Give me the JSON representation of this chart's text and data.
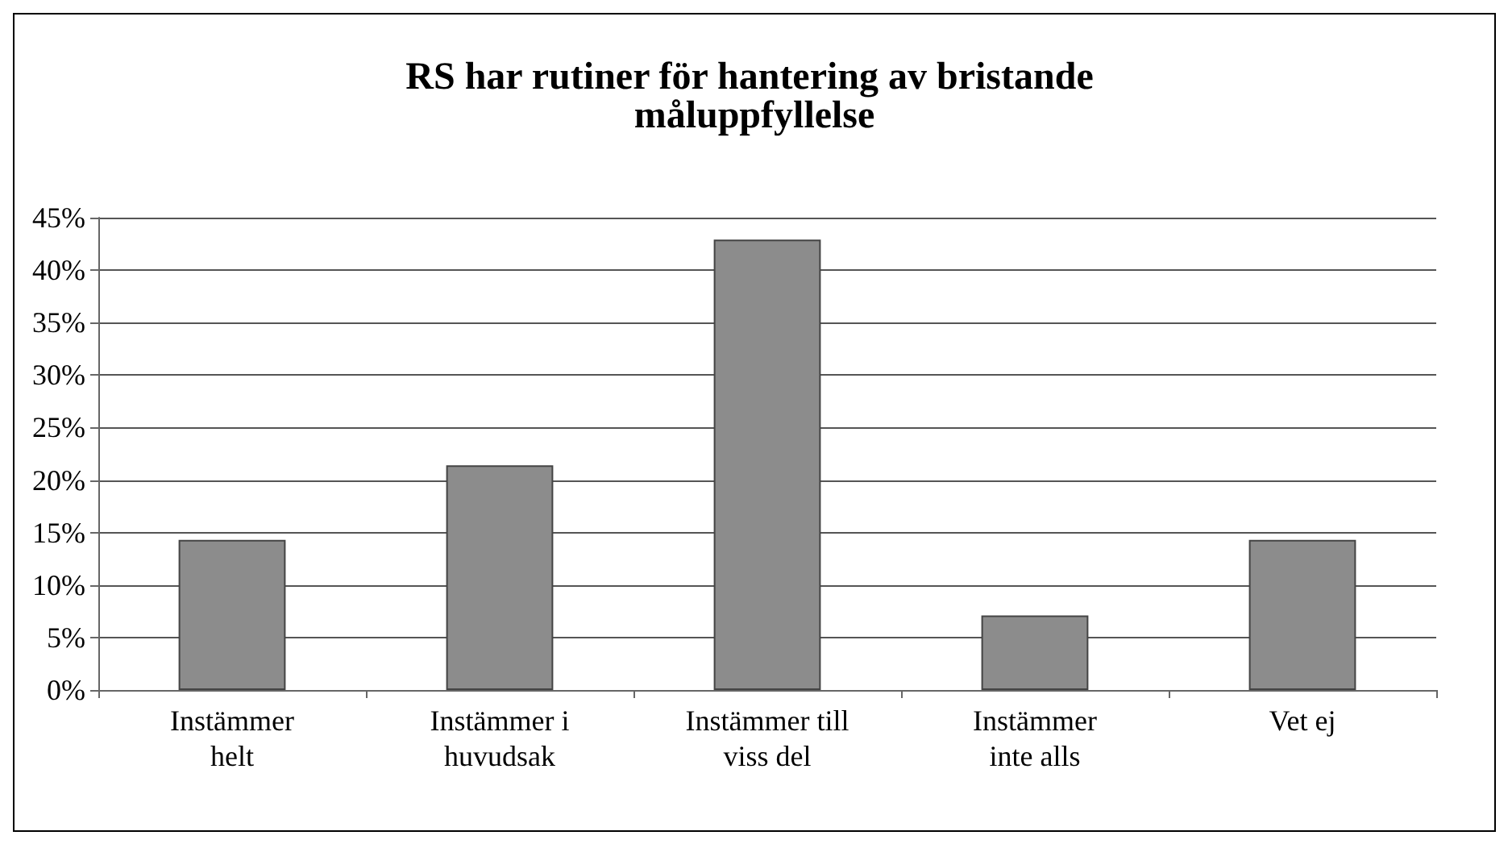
{
  "chart_data": {
    "type": "bar",
    "title": "RS har rutiner för hantering av bristande måluppfyllelse",
    "categories": [
      "Instämmer\nhelt",
      "Instämmer i\nhuvudsak",
      "Instämmer till\nviss del",
      "Instämmer\ninte alls",
      "Vet ej"
    ],
    "values": [
      14.3,
      21.4,
      42.9,
      7.1,
      14.3
    ],
    "color": "#8c8c8c",
    "ylim": [
      0,
      45
    ],
    "yticks": [
      {
        "value": 0,
        "label": "0%"
      },
      {
        "value": 5,
        "label": "5%"
      },
      {
        "value": 10,
        "label": "10%"
      },
      {
        "value": 15,
        "label": "15%"
      },
      {
        "value": 20,
        "label": "20%"
      },
      {
        "value": 25,
        "label": "25%"
      },
      {
        "value": 30,
        "label": "30%"
      },
      {
        "value": 35,
        "label": "35%"
      },
      {
        "value": 40,
        "label": "40%"
      },
      {
        "value": 45,
        "label": "45%"
      }
    ],
    "grid": true
  }
}
